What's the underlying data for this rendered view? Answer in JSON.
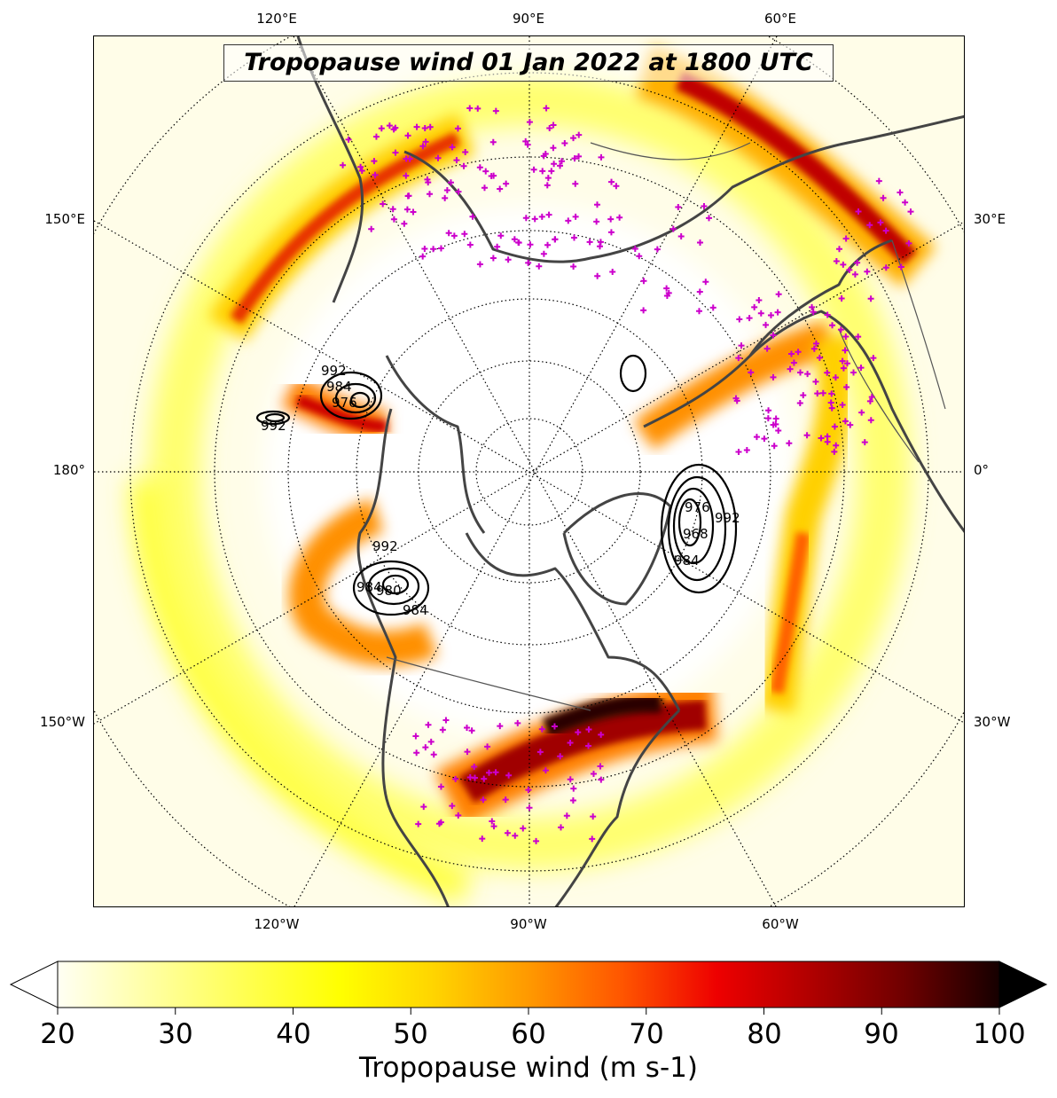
{
  "title": "Tropopause wind 01 Jan 2022 at 1800 UTC",
  "longitude_labels": {
    "top": [
      "120°E",
      "90°E",
      "60°E"
    ],
    "bottom": [
      "120°W",
      "90°W",
      "60°W"
    ],
    "left": [
      "150°E",
      "180°",
      "150°W"
    ],
    "right": [
      "30°E",
      "0°",
      "30°W"
    ]
  },
  "colorbar": {
    "label": "Tropopause wind (m s-1)",
    "tick_labels": [
      "20",
      "30",
      "40",
      "50",
      "60",
      "70",
      "80",
      "90",
      "100"
    ],
    "min": 20,
    "max": 100,
    "extend": "both",
    "colormap": "hot_r",
    "colors": [
      "#fffff4",
      "#ffff99",
      "#ffff00",
      "#ffd400",
      "#ff9900",
      "#ff5500",
      "#ee0000",
      "#b00000",
      "#6e0000",
      "#160000"
    ]
  },
  "contour_labels": [
    "992",
    "984",
    "976",
    "992",
    "992",
    "984",
    "980",
    "984",
    "992",
    "976",
    "968",
    "984"
  ],
  "map": {
    "projection": "north-polar-stereographic",
    "center_longitude_down": "90°W",
    "gridline_style": "dotted",
    "coastline_color": "#444444",
    "marker_color": "#cc00cc",
    "marker_symbol": "+"
  }
}
